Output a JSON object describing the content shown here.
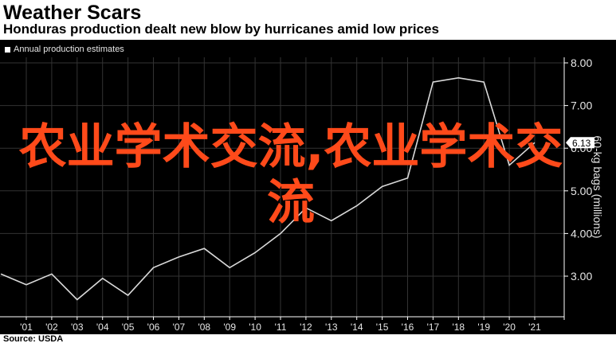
{
  "header": {
    "title": "Weather Scars",
    "subtitle": "Honduras production dealt new blow by hurricanes amid low prices"
  },
  "legend": {
    "label": "Annual production estimates"
  },
  "footer": {
    "source": "Source: USDA"
  },
  "overlay": {
    "text": "农业学术交流,农业学术交流"
  },
  "colors": {
    "background": "#000000",
    "line": "#d9d9d9",
    "grid": "#333333",
    "axis": "#ffffff",
    "overlay": "#ff4a1a"
  },
  "chart_data": {
    "type": "line",
    "ylabel": "60-kg bags (millions)",
    "ylim": [
      2.3,
      8.2
    ],
    "yticks": [
      3,
      4,
      5,
      6,
      7,
      8
    ],
    "ytick_labels": [
      "3.00",
      "4.00",
      "5.00",
      "6.00",
      "7.00",
      "8.00"
    ],
    "xticks": [
      "'01",
      "'02",
      "'03",
      "'04",
      "'05",
      "'06",
      "'07",
      "'08",
      "'09",
      "'10",
      "'11",
      "'12",
      "'13",
      "'14",
      "'15",
      "'16",
      "'17",
      "'18",
      "'19",
      "'20",
      "'21"
    ],
    "grid": true,
    "last_value_label": "6.13",
    "series": [
      {
        "x": [
          2000,
          2001,
          2002,
          2003,
          2004,
          2005,
          2006,
          2007,
          2008,
          2009,
          2010,
          2011,
          2012,
          2013,
          2014,
          2015,
          2016,
          2017,
          2018,
          2019,
          2020,
          2021
        ],
        "values": [
          3.05,
          2.8,
          3.05,
          2.45,
          2.95,
          2.55,
          3.2,
          3.45,
          3.65,
          3.2,
          3.55,
          4.0,
          4.6,
          4.3,
          4.65,
          5.1,
          5.3,
          7.55,
          7.65,
          7.55,
          5.6,
          6.13
        ]
      }
    ]
  }
}
